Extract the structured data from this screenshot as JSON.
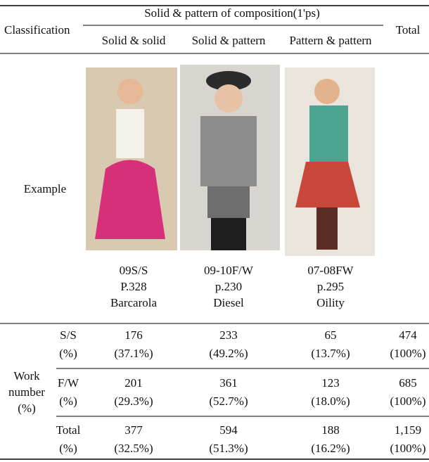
{
  "header": {
    "classification": "Classification",
    "group": "Solid & pattern of composition(1'ps)",
    "columns": [
      "Solid & solid",
      "Solid & pattern",
      "Pattern & pattern"
    ],
    "total": "Total"
  },
  "example": {
    "label": "Example",
    "captions": [
      [
        "09S/S",
        "P.328",
        "Barcarola"
      ],
      [
        "09-10F/W",
        "p.230",
        "Diesel"
      ],
      [
        "07-08FW",
        "p.295",
        "Oility"
      ]
    ]
  },
  "work_number": {
    "label": [
      "Work",
      "number",
      "(%)"
    ],
    "rows": [
      {
        "name": "S/S",
        "unit": "(%)",
        "values": [
          "176",
          "233",
          "65",
          "474"
        ],
        "percents": [
          "(37.1%)",
          "(49.2%)",
          "(13.7%)",
          "(100%)"
        ]
      },
      {
        "name": "F/W",
        "unit": "(%)",
        "values": [
          "201",
          "361",
          "123",
          "685"
        ],
        "percents": [
          "(29.3%)",
          "(52.7%)",
          "(18.0%)",
          "(100%)"
        ]
      },
      {
        "name": "Total",
        "unit": "(%)",
        "values": [
          "377",
          "594",
          "188",
          "1,159"
        ],
        "percents": [
          "(32.5%)",
          "(51.3%)",
          "(16.2%)",
          "(100%)"
        ]
      }
    ]
  }
}
